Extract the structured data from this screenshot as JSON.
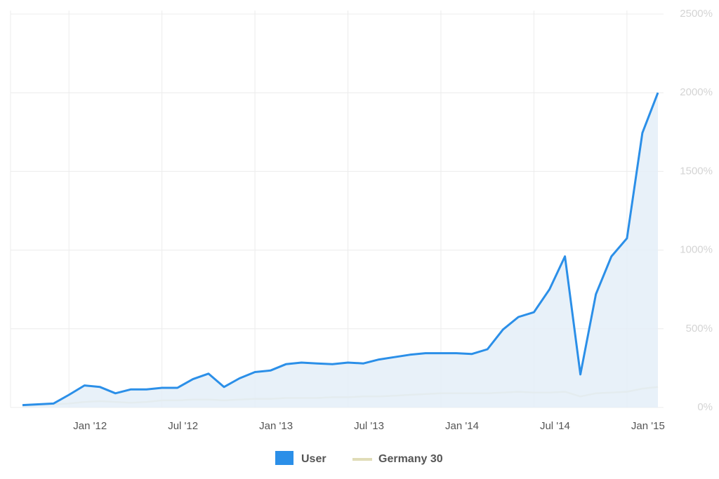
{
  "chart_data": {
    "type": "line",
    "x": [
      "2011-10",
      "2011-11",
      "2011-12",
      "2012-01",
      "2012-02",
      "2012-03",
      "2012-04",
      "2012-05",
      "2012-06",
      "2012-07",
      "2012-08",
      "2012-09",
      "2012-10",
      "2012-11",
      "2012-12",
      "2013-01",
      "2013-02",
      "2013-03",
      "2013-04",
      "2013-05",
      "2013-06",
      "2013-07",
      "2013-08",
      "2013-09",
      "2013-10",
      "2013-11",
      "2013-12",
      "2014-01",
      "2014-02",
      "2014-03",
      "2014-04",
      "2014-05",
      "2014-06",
      "2014-07",
      "2014-08",
      "2014-09",
      "2014-10",
      "2014-11",
      "2014-12",
      "2015-01",
      "2015-02",
      "2015-03"
    ],
    "series": [
      {
        "name": "User",
        "color": "#2b8fe8",
        "area": true,
        "values": [
          15,
          20,
          25,
          80,
          140,
          130,
          90,
          115,
          115,
          125,
          125,
          180,
          215,
          130,
          185,
          225,
          235,
          275,
          285,
          280,
          275,
          285,
          280,
          305,
          320,
          335,
          345,
          345,
          345,
          340,
          370,
          495,
          575,
          605,
          750,
          960,
          210,
          720,
          960,
          1075,
          1745,
          2000
        ]
      },
      {
        "name": "Germany 30",
        "color": "#e0dcb8",
        "values": [
          10,
          15,
          20,
          25,
          35,
          40,
          35,
          30,
          35,
          45,
          45,
          50,
          50,
          45,
          50,
          55,
          55,
          60,
          60,
          60,
          65,
          65,
          70,
          70,
          75,
          80,
          85,
          90,
          90,
          90,
          90,
          95,
          100,
          95,
          95,
          100,
          70,
          90,
          95,
          100,
          120,
          130
        ]
      }
    ],
    "xlim": [
      "2011-10",
      "2015-03"
    ],
    "xticks": [
      {
        "value": "2012-01",
        "label": "Jan '12"
      },
      {
        "value": "2012-07",
        "label": "Jul '12"
      },
      {
        "value": "2013-01",
        "label": "Jan '13"
      },
      {
        "value": "2013-07",
        "label": "Jul '13"
      },
      {
        "value": "2014-01",
        "label": "Jan '14"
      },
      {
        "value": "2014-07",
        "label": "Jul '14"
      },
      {
        "value": "2015-01",
        "label": "Jan '15"
      }
    ],
    "ylim": [
      0,
      2500
    ],
    "yticks": [
      {
        "value": 0,
        "label": "0%"
      },
      {
        "value": 500,
        "label": "500%"
      },
      {
        "value": 1000,
        "label": "1000%"
      },
      {
        "value": 1500,
        "label": "1500%"
      },
      {
        "value": 2000,
        "label": "2000%"
      },
      {
        "value": 2500,
        "label": "2500%"
      }
    ],
    "grid": true,
    "legend": "bottom"
  }
}
